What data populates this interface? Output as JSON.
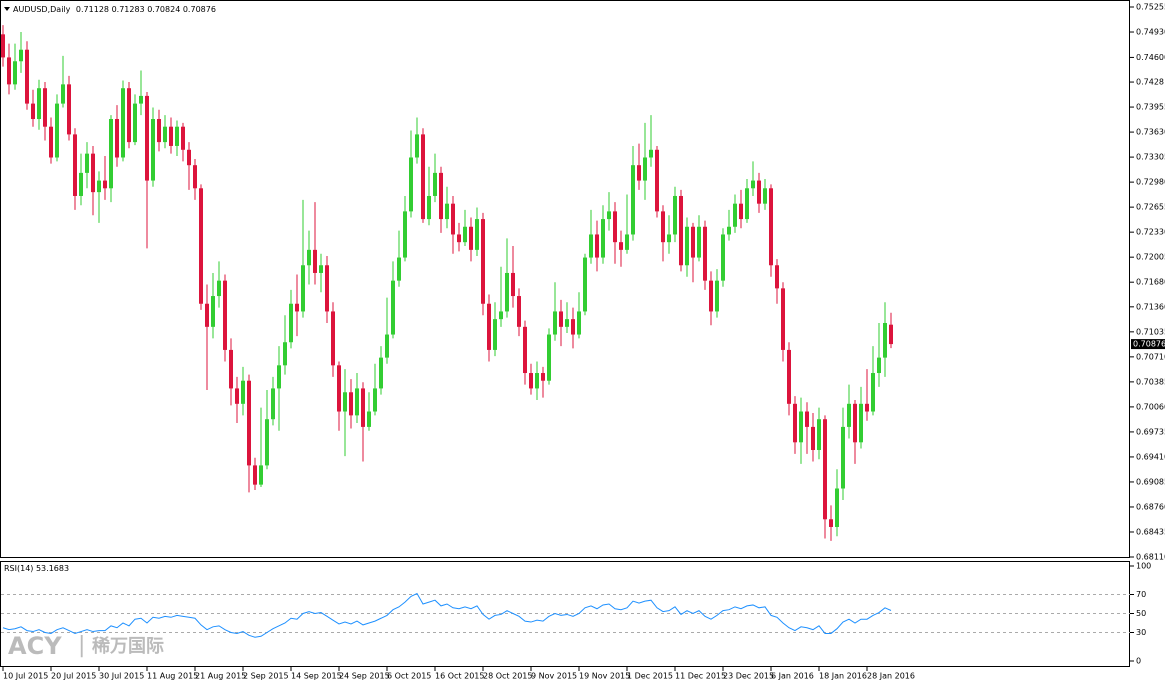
{
  "chart_data": {
    "type": "candlestick",
    "symbol": "AUDUSD,Daily",
    "bull_color": "#32cd32",
    "bear_color": "#dc143c",
    "ylim": [
      0.6811,
      0.75255
    ],
    "yticks": [
      0.75255,
      {
        "value": 0.7493,
        "label": "0.74930"
      },
      {
        "value": 0.746,
        "label": "0.74600"
      },
      0.7428,
      0.73955,
      {
        "value": 0.7363,
        "label": "0.73630"
      },
      0.73305,
      {
        "value": 0.7298,
        "label": "0.72980"
      },
      0.72655,
      {
        "value": 0.7233,
        "label": "0.72330"
      },
      0.72005,
      {
        "value": 0.7168,
        "label": "0.71680"
      },
      {
        "value": 0.7136,
        "label": "0.71360"
      },
      0.71035,
      {
        "value": 0.7071,
        "label": "0.70710"
      },
      0.70385,
      {
        "value": 0.7006,
        "label": "0.70060"
      },
      0.69735,
      {
        "value": 0.6941,
        "label": "0.69410"
      },
      0.69085,
      {
        "value": 0.6876,
        "label": "0.68760"
      },
      0.68435,
      {
        "value": 0.6811,
        "label": "0.68110"
      }
    ],
    "xticks": [
      {
        "value": 0,
        "label": "10 Jul 2015"
      },
      {
        "value": 8,
        "label": "20 Jul 2015"
      },
      {
        "value": 16,
        "label": "30 Jul 2015"
      },
      {
        "value": 24,
        "label": "11 Aug 2015"
      },
      {
        "value": 32,
        "label": "21 Aug 2015"
      },
      {
        "value": 40,
        "label": "2 Sep 2015"
      },
      {
        "value": 48,
        "label": "14 Sep 2015"
      },
      {
        "value": 56,
        "label": "24 Sep 2015"
      },
      {
        "value": 64,
        "label": "6 Oct 2015"
      },
      {
        "value": 72,
        "label": "16 Oct 2015"
      },
      {
        "value": 80,
        "label": "28 Oct 2015"
      },
      {
        "value": 88,
        "label": "9 Nov 2015"
      },
      {
        "value": 96,
        "label": "19 Nov 2015"
      },
      {
        "value": 104,
        "label": "1 Dec 2015"
      },
      {
        "value": 112,
        "label": "11 Dec 2015"
      },
      {
        "value": 120,
        "label": "23 Dec 2015"
      },
      {
        "value": 128,
        "label": "6 Jan 2016"
      },
      {
        "value": 136,
        "label": "18 Jan 2016"
      },
      {
        "value": 144,
        "label": "28 Jan 2016"
      }
    ],
    "ohlc": [
      [
        0.749,
        0.7502,
        0.7448,
        0.746
      ],
      [
        0.746,
        0.7478,
        0.7412,
        0.7425
      ],
      [
        0.7425,
        0.7478,
        0.7418,
        0.7455
      ],
      [
        0.7455,
        0.7493,
        0.744,
        0.747
      ],
      [
        0.747,
        0.7481,
        0.7392,
        0.74
      ],
      [
        0.74,
        0.7418,
        0.737,
        0.738
      ],
      [
        0.738,
        0.7431,
        0.7366,
        0.742
      ],
      [
        0.742,
        0.7428,
        0.7352,
        0.737
      ],
      [
        0.737,
        0.7382,
        0.7322,
        0.733
      ],
      [
        0.733,
        0.7412,
        0.7325,
        0.74
      ],
      [
        0.74,
        0.7462,
        0.7395,
        0.7425
      ],
      [
        0.7425,
        0.7436,
        0.7352,
        0.736
      ],
      [
        0.736,
        0.7368,
        0.7262,
        0.728
      ],
      [
        0.728,
        0.7335,
        0.7268,
        0.731
      ],
      [
        0.731,
        0.735,
        0.729,
        0.7335
      ],
      [
        0.7335,
        0.7345,
        0.7255,
        0.7285
      ],
      [
        0.7285,
        0.7312,
        0.7245,
        0.73
      ],
      [
        0.73,
        0.7332,
        0.7275,
        0.729
      ],
      [
        0.729,
        0.7385,
        0.7272,
        0.738
      ],
      [
        0.738,
        0.7398,
        0.7318,
        0.733
      ],
      [
        0.733,
        0.743,
        0.7325,
        0.742
      ],
      [
        0.742,
        0.7428,
        0.7342,
        0.735
      ],
      [
        0.735,
        0.7412,
        0.7346,
        0.74
      ],
      [
        0.74,
        0.7443,
        0.7385,
        0.741
      ],
      [
        0.741,
        0.7415,
        0.7212,
        0.73
      ],
      [
        0.73,
        0.7395,
        0.7292,
        0.738
      ],
      [
        0.738,
        0.7392,
        0.7338,
        0.735
      ],
      [
        0.735,
        0.7385,
        0.7342,
        0.737
      ],
      [
        0.737,
        0.7382,
        0.7335,
        0.7345
      ],
      [
        0.7345,
        0.7378,
        0.7332,
        0.737
      ],
      [
        0.737,
        0.7375,
        0.7325,
        0.734
      ],
      [
        0.734,
        0.735,
        0.7288,
        0.732
      ],
      [
        0.732,
        0.7328,
        0.7275,
        0.729
      ],
      [
        0.729,
        0.7295,
        0.7132,
        0.714
      ],
      [
        0.714,
        0.7165,
        0.7028,
        0.711
      ],
      [
        0.711,
        0.718,
        0.7095,
        0.715
      ],
      [
        0.715,
        0.7195,
        0.7135,
        0.717
      ],
      [
        0.717,
        0.7178,
        0.7065,
        0.708
      ],
      [
        0.708,
        0.7095,
        0.7008,
        0.703
      ],
      [
        0.703,
        0.7045,
        0.6985,
        0.701
      ],
      [
        0.701,
        0.7058,
        0.6995,
        0.704
      ],
      [
        0.704,
        0.7048,
        0.6895,
        0.693
      ],
      [
        0.693,
        0.694,
        0.6898,
        0.6905
      ],
      [
        0.6905,
        0.7005,
        0.6902,
        0.693
      ],
      [
        0.693,
        0.7028,
        0.6925,
        0.699
      ],
      [
        0.699,
        0.7045,
        0.6982,
        0.703
      ],
      [
        0.703,
        0.7085,
        0.6975,
        0.706
      ],
      [
        0.706,
        0.7125,
        0.7048,
        0.709
      ],
      [
        0.709,
        0.7158,
        0.7082,
        0.714
      ],
      [
        0.714,
        0.7178,
        0.7098,
        0.713
      ],
      [
        0.713,
        0.7275,
        0.7122,
        0.719
      ],
      [
        0.719,
        0.7235,
        0.7165,
        0.721
      ],
      [
        0.721,
        0.7272,
        0.7165,
        0.718
      ],
      [
        0.718,
        0.7205,
        0.7155,
        0.719
      ],
      [
        0.719,
        0.7202,
        0.7115,
        0.713
      ],
      [
        0.713,
        0.7142,
        0.7045,
        0.706
      ],
      [
        0.706,
        0.7065,
        0.6975,
        0.7
      ],
      [
        0.7,
        0.7055,
        0.6942,
        0.7025
      ],
      [
        0.7025,
        0.7042,
        0.6978,
        0.6995
      ],
      [
        0.6995,
        0.705,
        0.6985,
        0.703
      ],
      [
        0.703,
        0.7038,
        0.6935,
        0.698
      ],
      [
        0.698,
        0.7025,
        0.6975,
        0.7
      ],
      [
        0.7,
        0.7062,
        0.6995,
        0.703
      ],
      [
        0.703,
        0.7085,
        0.7022,
        0.707
      ],
      [
        0.707,
        0.7148,
        0.7062,
        0.71
      ],
      [
        0.71,
        0.7195,
        0.7095,
        0.717
      ],
      [
        0.717,
        0.7235,
        0.7162,
        0.72
      ],
      [
        0.72,
        0.728,
        0.7195,
        0.726
      ],
      [
        0.726,
        0.7365,
        0.7252,
        0.733
      ],
      [
        0.733,
        0.7382,
        0.7322,
        0.736
      ],
      [
        0.736,
        0.7368,
        0.7245,
        0.725
      ],
      [
        0.725,
        0.7318,
        0.7242,
        0.728
      ],
      [
        0.728,
        0.7335,
        0.7272,
        0.731
      ],
      [
        0.731,
        0.7318,
        0.7232,
        0.725
      ],
      [
        0.725,
        0.7292,
        0.7238,
        0.727
      ],
      [
        0.727,
        0.728,
        0.7205,
        0.723
      ],
      [
        0.723,
        0.7245,
        0.7208,
        0.722
      ],
      [
        0.722,
        0.7262,
        0.7215,
        0.724
      ],
      [
        0.724,
        0.7252,
        0.7195,
        0.721
      ],
      [
        0.721,
        0.7265,
        0.7202,
        0.725
      ],
      [
        0.725,
        0.7258,
        0.7125,
        0.714
      ],
      [
        0.714,
        0.7152,
        0.7065,
        0.708
      ],
      [
        0.708,
        0.7142,
        0.7072,
        0.712
      ],
      [
        0.712,
        0.7188,
        0.711,
        0.713
      ],
      [
        0.713,
        0.7225,
        0.7122,
        0.718
      ],
      [
        0.718,
        0.7215,
        0.7135,
        0.715
      ],
      [
        0.715,
        0.716,
        0.7098,
        0.711
      ],
      [
        0.711,
        0.7118,
        0.7035,
        0.705
      ],
      [
        0.705,
        0.7062,
        0.7022,
        0.703
      ],
      [
        0.703,
        0.7065,
        0.7015,
        0.705
      ],
      [
        0.705,
        0.7058,
        0.7018,
        0.704
      ],
      [
        0.704,
        0.7108,
        0.7035,
        0.71
      ],
      [
        0.71,
        0.7168,
        0.7092,
        0.713
      ],
      [
        0.713,
        0.7145,
        0.7085,
        0.711
      ],
      [
        0.711,
        0.7142,
        0.7102,
        0.712
      ],
      [
        0.712,
        0.7135,
        0.7082,
        0.71
      ],
      [
        0.71,
        0.7155,
        0.7095,
        0.713
      ],
      [
        0.713,
        0.7205,
        0.7125,
        0.72
      ],
      [
        0.72,
        0.7262,
        0.7192,
        0.723
      ],
      [
        0.723,
        0.7248,
        0.7182,
        0.72
      ],
      [
        0.72,
        0.7268,
        0.7192,
        0.725
      ],
      [
        0.725,
        0.7285,
        0.7235,
        0.726
      ],
      [
        0.726,
        0.7272,
        0.7192,
        0.722
      ],
      [
        0.722,
        0.7235,
        0.7188,
        0.721
      ],
      [
        0.721,
        0.7282,
        0.7205,
        0.723
      ],
      [
        0.723,
        0.7345,
        0.7222,
        0.732
      ],
      [
        0.732,
        0.7348,
        0.7288,
        0.73
      ],
      [
        0.73,
        0.7375,
        0.7275,
        0.733
      ],
      [
        0.733,
        0.7385,
        0.7318,
        0.734
      ],
      [
        0.734,
        0.7345,
        0.7252,
        0.726
      ],
      [
        0.726,
        0.7268,
        0.7195,
        0.722
      ],
      [
        0.722,
        0.7255,
        0.7205,
        0.723
      ],
      [
        0.723,
        0.7292,
        0.722,
        0.728
      ],
      [
        0.728,
        0.7288,
        0.7182,
        0.719
      ],
      [
        0.719,
        0.7252,
        0.7175,
        0.724
      ],
      [
        0.724,
        0.7245,
        0.7168,
        0.72
      ],
      [
        0.72,
        0.7255,
        0.7195,
        0.724
      ],
      [
        0.724,
        0.7248,
        0.7158,
        0.717
      ],
      [
        0.717,
        0.7182,
        0.7112,
        0.713
      ],
      [
        0.713,
        0.7185,
        0.7122,
        0.717
      ],
      [
        0.717,
        0.7238,
        0.7162,
        0.723
      ],
      [
        0.723,
        0.7262,
        0.7222,
        0.724
      ],
      [
        0.724,
        0.7282,
        0.7232,
        0.727
      ],
      [
        0.727,
        0.7288,
        0.7238,
        0.725
      ],
      [
        0.725,
        0.7302,
        0.7245,
        0.729
      ],
      [
        0.729,
        0.7325,
        0.728,
        0.73
      ],
      [
        0.73,
        0.731,
        0.7258,
        0.727
      ],
      [
        0.727,
        0.7302,
        0.7262,
        0.729
      ],
      [
        0.729,
        0.7295,
        0.7175,
        0.719
      ],
      [
        0.719,
        0.7198,
        0.714,
        0.716
      ],
      [
        0.716,
        0.7168,
        0.7065,
        0.708
      ],
      [
        0.708,
        0.709,
        0.6995,
        0.701
      ],
      [
        0.701,
        0.702,
        0.6945,
        0.696
      ],
      [
        0.696,
        0.7018,
        0.6932,
        0.7
      ],
      [
        0.7,
        0.7012,
        0.6945,
        0.698
      ],
      [
        0.698,
        0.6998,
        0.6935,
        0.695
      ],
      [
        0.695,
        0.7005,
        0.6938,
        0.699
      ],
      [
        0.699,
        0.6995,
        0.6835,
        0.686
      ],
      [
        0.686,
        0.6878,
        0.6832,
        0.685
      ],
      [
        0.685,
        0.6925,
        0.6838,
        0.69
      ],
      [
        0.69,
        0.7005,
        0.6885,
        0.698
      ],
      [
        0.698,
        0.7035,
        0.6965,
        0.701
      ],
      [
        0.701,
        0.7015,
        0.6932,
        0.696
      ],
      [
        0.696,
        0.7032,
        0.6952,
        0.701
      ],
      [
        0.701,
        0.7055,
        0.6988,
        0.7
      ],
      [
        0.7,
        0.7085,
        0.6995,
        0.705
      ],
      [
        0.705,
        0.7115,
        0.7032,
        0.707
      ],
      [
        0.707,
        0.7142,
        0.7045,
        0.7115
      ],
      [
        0.71128,
        0.71283,
        0.70824,
        0.70876
      ]
    ],
    "indicator": {
      "name": "RSI(14)",
      "color": "#1e90ff",
      "ylim": [
        0,
        100
      ],
      "yticks": [
        100,
        70,
        50,
        30,
        0
      ],
      "levels": [
        70,
        50,
        30
      ],
      "values": [
        35,
        33,
        34,
        36,
        32,
        31,
        33,
        30,
        29,
        33,
        35,
        32,
        29,
        31,
        33,
        31,
        32,
        32,
        37,
        35,
        40,
        37,
        44,
        45,
        40,
        46,
        45,
        47,
        46,
        48,
        47,
        46,
        45,
        38,
        33,
        36,
        37,
        33,
        30,
        29,
        31,
        27,
        25,
        26,
        30,
        34,
        37,
        40,
        45,
        44,
        50,
        52,
        50,
        51,
        47,
        43,
        39,
        41,
        39,
        42,
        38,
        40,
        42,
        45,
        48,
        54,
        57,
        62,
        68,
        71,
        60,
        62,
        64,
        58,
        60,
        56,
        55,
        57,
        55,
        58,
        49,
        44,
        48,
        49,
        53,
        50,
        47,
        42,
        41,
        43,
        42,
        47,
        50,
        48,
        49,
        47,
        50,
        56,
        58,
        55,
        59,
        60,
        55,
        54,
        56,
        63,
        61,
        63,
        64,
        56,
        52,
        53,
        57,
        49,
        53,
        50,
        53,
        47,
        44,
        48,
        53,
        54,
        57,
        55,
        58,
        59,
        56,
        57,
        48,
        46,
        40,
        35,
        32,
        36,
        35,
        33,
        37,
        29,
        29,
        34,
        41,
        44,
        40,
        44,
        44,
        48,
        51,
        56,
        53.1683
      ]
    },
    "watermark": {
      "brand": "ACY",
      "separator": "|",
      "local_name": "稀万国际"
    }
  }
}
